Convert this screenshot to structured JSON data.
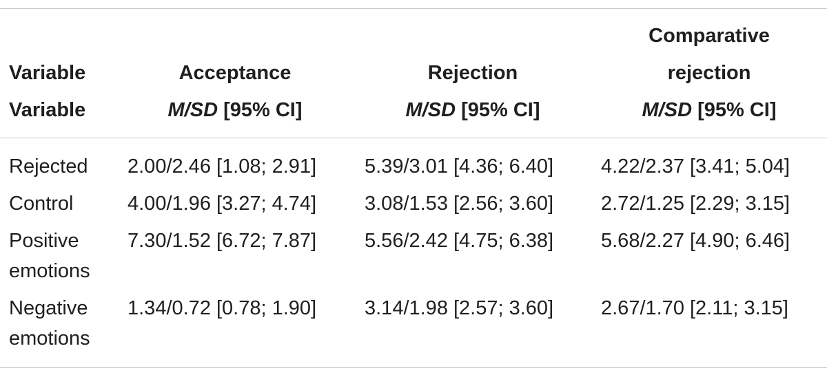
{
  "table": {
    "header": {
      "variable_line1": "Variable",
      "variable_line2": "Variable",
      "acceptance": "Acceptance",
      "rejection": "Rejection",
      "comparative_line1": "Comparative",
      "comparative_line2": "rejection",
      "stat_italic": "M/SD",
      "stat_rest": " [95% CI]"
    },
    "rows": [
      {
        "label_line1": "Rejected",
        "label_line2": "",
        "acceptance": "2.00/2.46 [1.08; 2.91]",
        "rejection": "5.39/3.01 [4.36; 6.40]",
        "comparative": "4.22/2.37 [3.41; 5.04]"
      },
      {
        "label_line1": "Control",
        "label_line2": "",
        "acceptance": "4.00/1.96 [3.27; 4.74]",
        "rejection": "3.08/1.53 [2.56; 3.60]",
        "comparative": "2.72/1.25 [2.29; 3.15]"
      },
      {
        "label_line1": "Positive",
        "label_line2": "emotions",
        "acceptance": "7.30/1.52 [6.72; 7.87]",
        "rejection": "5.56/2.42 [4.75; 6.38]",
        "comparative": "5.68/2.27 [4.90; 6.46]"
      },
      {
        "label_line1": "Negative",
        "label_line2": "emotions",
        "acceptance": "1.34/0.72 [0.78; 1.90]",
        "rejection": "3.14/1.98 [2.57; 3.60]",
        "comparative": "2.67/1.70 [2.11; 3.15]"
      }
    ]
  }
}
